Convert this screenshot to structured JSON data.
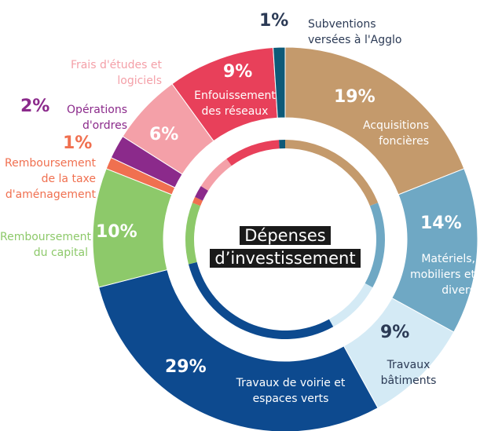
{
  "chart_data": {
    "type": "pie",
    "title": "Dépenses d’investissement",
    "categories": [
      "Acquisitions foncières",
      "Matériels, mobiliers et divers",
      "Travaux bâtiments",
      "Travaux de voirie et espaces verts",
      "Remboursement du capital",
      "Remboursement de la taxe d'aménagement",
      "Opérations d'ordres",
      "Frais d'études et logiciels",
      "Enfouissement des réseaux",
      "Subventions versées à l'Agglo"
    ],
    "values": [
      19,
      14,
      9,
      29,
      10,
      1,
      2,
      6,
      9,
      1
    ],
    "value_labels": [
      "19%",
      "14%",
      "9%",
      "29%",
      "10%",
      "1%",
      "2%",
      "6%",
      "9%",
      "1%"
    ],
    "colors": [
      "#c49a6c",
      "#6fa8c4",
      "#d4eaf5",
      "#0d4a8f",
      "#8dc96a",
      "#f07050",
      "#8b2a8b",
      "#f4a0a8",
      "#e8405a",
      "#0d5a78"
    ]
  }
}
